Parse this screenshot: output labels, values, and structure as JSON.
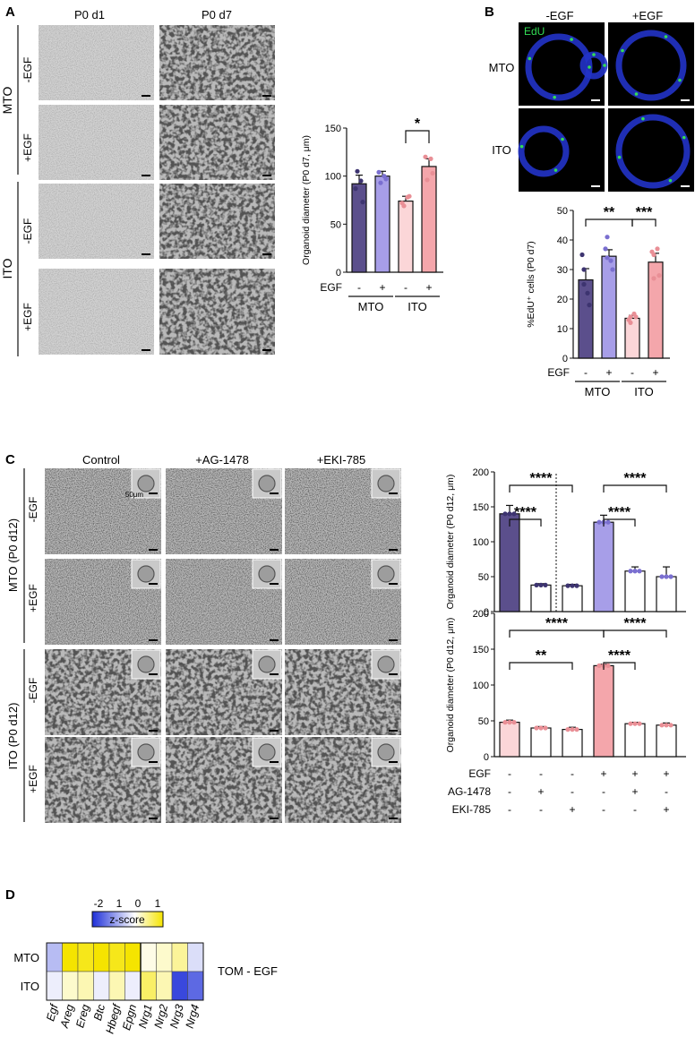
{
  "panels": {
    "A": {
      "letter": "A",
      "col_labels": [
        "P0 d1",
        "P0 d7"
      ],
      "group_labels": [
        "MTO",
        "ITO"
      ],
      "row_labels": [
        "-EGF",
        "+EGF",
        "-EGF",
        "+EGF"
      ]
    },
    "B": {
      "letter": "B",
      "col_labels": [
        "-EGF",
        "+EGF"
      ],
      "row_labels": [
        "MTO",
        "ITO"
      ],
      "stain": "EdU"
    },
    "C": {
      "letter": "C",
      "col_labels": [
        "Control",
        "+AG-1478",
        "+EKI-785"
      ],
      "group_labels": [
        "MTO (P0 d12)",
        "ITO (P0 d12)"
      ],
      "row_labels": [
        "-EGF",
        "+EGF",
        "-EGF",
        "+EGF"
      ],
      "inset_scale_label": "50μm"
    },
    "D": {
      "letter": "D",
      "zscore_label": "z-score",
      "zscore_ticks": [
        "-2",
        "1",
        "0",
        "1"
      ],
      "rows": [
        "MTO",
        "ITO"
      ],
      "cols": [
        "Egf",
        "Areg",
        "Ereg",
        "Btc",
        "Hbegf",
        "Epgn",
        "Nrg1",
        "Nrg2",
        "Nrg3",
        "Nrg4"
      ],
      "side_label": "TOM - EGF"
    }
  },
  "colors": {
    "mto_dark": "#5b4f8c",
    "mto_light": "#a79ee8",
    "ito_light": "#fbd6d8",
    "ito_dark": "#f4a6ab",
    "dot_mto_dark": "#3d3470",
    "dot_mto_light": "#7a6fd0",
    "dot_ito": "#e98f96"
  },
  "chart_data": [
    {
      "id": "A_bar",
      "type": "bar",
      "categories": [
        "MTO -EGF",
        "MTO +EGF",
        "ITO -EGF",
        "ITO +EGF"
      ],
      "values": [
        92,
        100,
        74,
        110
      ],
      "errors": [
        9,
        5,
        5,
        8
      ],
      "points": [
        [
          87,
          73,
          105,
          95
        ],
        [
          104,
          97,
          93,
          100
        ],
        [
          72,
          79,
          69,
          78
        ],
        [
          120,
          103,
          96,
          118
        ]
      ],
      "ylabel": "Organoid diameter (P0 d7, μm)",
      "ylim": [
        0,
        150
      ],
      "yticks": [
        0,
        50,
        100,
        150
      ],
      "egf_row_label": "EGF",
      "egf_signs": [
        "-",
        "+",
        "-",
        "+"
      ],
      "group_labels": [
        "MTO",
        "ITO"
      ],
      "significance": [
        {
          "between": [
            2,
            3
          ],
          "label": "*"
        }
      ]
    },
    {
      "id": "B_bar",
      "type": "bar",
      "categories": [
        "MTO -EGF",
        "MTO +EGF",
        "ITO -EGF",
        "ITO +EGF"
      ],
      "values": [
        26.5,
        34.5,
        13.5,
        32.5
      ],
      "errors": [
        3.8,
        2.2,
        1.0,
        3.0
      ],
      "points": [
        [
          35,
          18,
          25,
          22,
          30
        ],
        [
          37,
          30,
          41,
          33,
          34
        ],
        [
          13,
          14,
          12,
          15,
          14
        ],
        [
          36,
          28,
          35,
          37,
          27
        ]
      ],
      "ylabel": "%EdU⁺ cells (P0 d7)",
      "ylim": [
        0,
        50
      ],
      "yticks": [
        0,
        10,
        20,
        30,
        40,
        50
      ],
      "egf_row_label": "EGF",
      "egf_signs": [
        "-",
        "+",
        "-",
        "+"
      ],
      "group_labels": [
        "MTO",
        "ITO"
      ],
      "significance": [
        {
          "between": [
            0,
            2
          ],
          "label": "**"
        },
        {
          "between": [
            2,
            3
          ],
          "label": "***"
        }
      ]
    },
    {
      "id": "C_top",
      "type": "bar",
      "categories": [
        "MTO Control -EGF",
        "MTO AG-1478 -EGF",
        "MTO EKI-785 -EGF",
        "MTO Control +EGF",
        "MTO AG-1478 +EGF",
        "MTO EKI-785 +EGF"
      ],
      "values": [
        140,
        38,
        37,
        128,
        58,
        50
      ],
      "errors": [
        12,
        2,
        2,
        10,
        6,
        14
      ],
      "ylabel": "Organoid diameter (P0 d12, μm)",
      "ylim": [
        0,
        200
      ],
      "yticks": [
        0,
        50,
        100,
        150,
        200
      ],
      "significance": [
        {
          "between": [
            0,
            1
          ],
          "label": "****"
        },
        {
          "between": [
            0,
            2
          ],
          "label": "****"
        },
        {
          "between": [
            3,
            4
          ],
          "label": "****"
        },
        {
          "between": [
            3,
            5
          ],
          "label": "****"
        }
      ]
    },
    {
      "id": "C_bottom",
      "type": "bar",
      "categories": [
        "ITO Control -EGF",
        "ITO AG-1478 -EGF",
        "ITO EKI-785 -EGF",
        "ITO Control +EGF",
        "ITO AG-1478 +EGF",
        "ITO EKI-785 +EGF"
      ],
      "values": [
        48,
        40,
        38,
        127,
        46,
        44
      ],
      "errors": [
        3,
        2,
        3,
        2,
        2,
        3
      ],
      "ylabel": "Organoid diameter (P0 d12, μm)",
      "ylim": [
        0,
        200
      ],
      "yticks": [
        0,
        50,
        100,
        150,
        200
      ],
      "significance": [
        {
          "between": [
            0,
            3
          ],
          "label": "****"
        },
        {
          "between": [
            0,
            2
          ],
          "label": "**"
        },
        {
          "between": [
            3,
            5
          ],
          "label": "****"
        },
        {
          "between": [
            3,
            4
          ],
          "label": "****"
        }
      ],
      "treatment_rows": [
        {
          "label": "EGF",
          "signs": [
            "-",
            "-",
            "-",
            "+",
            "+",
            "+"
          ]
        },
        {
          "label": "AG-1478",
          "signs": [
            "-",
            "+",
            "-",
            "-",
            "+",
            "-"
          ]
        },
        {
          "label": "EKI-785",
          "signs": [
            "-",
            "-",
            "+",
            "-",
            "-",
            "+"
          ]
        }
      ]
    },
    {
      "id": "D_heatmap",
      "type": "heatmap",
      "rows": [
        "MTO",
        "ITO"
      ],
      "cols": [
        "Egf",
        "Areg",
        "Ereg",
        "Btc",
        "Hbegf",
        "Epgn",
        "Nrg1",
        "Nrg2",
        "Nrg3",
        "Nrg4"
      ],
      "values": [
        [
          -0.4,
          1.0,
          0.9,
          1.2,
          0.9,
          1.1,
          0.1,
          0.2,
          0.4,
          -0.2
        ],
        [
          -0.1,
          0.2,
          0.3,
          -0.1,
          0.3,
          -0.1,
          0.6,
          0.3,
          -1.1,
          -0.9
        ]
      ],
      "color_scale": [
        "#1e2fd8",
        "#ffffff",
        "#f5e400"
      ],
      "zlim": [
        -2,
        1
      ]
    }
  ]
}
